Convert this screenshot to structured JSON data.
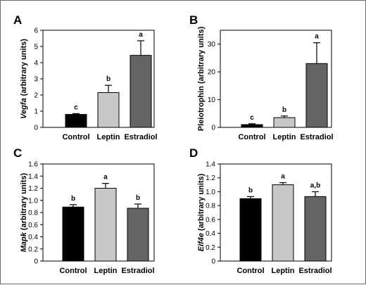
{
  "chart_data": [
    {
      "type": "bar",
      "panel": "A",
      "ylabel_italic": "Vegfa",
      "ylabel_rest": " (arbitrary units)",
      "categories": [
        "Control",
        "Leptin",
        "Estradiol"
      ],
      "values": [
        0.8,
        2.15,
        4.45
      ],
      "errors": [
        0.05,
        0.45,
        0.9
      ],
      "significance": [
        "c",
        "b",
        "a"
      ],
      "colors": [
        "#000000",
        "#c8c8c8",
        "#646464"
      ],
      "ylim": [
        0,
        6
      ],
      "yticks": [
        0,
        1,
        2,
        3,
        4,
        5,
        6
      ]
    },
    {
      "type": "bar",
      "panel": "B",
      "ylabel_italic": "",
      "ylabel_rest": "Pleiotrophin (arbitrary units)",
      "categories": [
        "Control",
        "Leptin",
        "Estradiol"
      ],
      "values": [
        1.0,
        3.5,
        23.0
      ],
      "errors": [
        0.3,
        0.6,
        7.5
      ],
      "significance": [
        "c",
        "b",
        "a"
      ],
      "colors": [
        "#000000",
        "#c8c8c8",
        "#646464"
      ],
      "ylim": [
        0,
        35
      ],
      "yticks": [
        0,
        10,
        20,
        30
      ]
    },
    {
      "type": "bar",
      "panel": "C",
      "ylabel_italic": "Mapk",
      "ylabel_rest": " (arbitrary units)",
      "categories": [
        "Control",
        "Leptin",
        "Estradiol"
      ],
      "values": [
        0.89,
        1.2,
        0.87
      ],
      "errors": [
        0.04,
        0.08,
        0.07
      ],
      "significance": [
        "b",
        "a",
        "b"
      ],
      "colors": [
        "#000000",
        "#c8c8c8",
        "#646464"
      ],
      "ylim": [
        0,
        1.6
      ],
      "yticks": [
        0,
        0.2,
        0.4,
        0.6,
        0.8,
        1.0,
        1.2,
        1.4,
        1.6
      ],
      "ytick_labels": [
        "0",
        "0.2",
        "0.4",
        "0.6",
        "0.8",
        "1.0",
        "1.2",
        "1.4",
        "1.6"
      ]
    },
    {
      "type": "bar",
      "panel": "D",
      "ylabel_italic": "Eif4e",
      "ylabel_rest": " (arbitrary units)",
      "categories": [
        "Control",
        "Leptin",
        "Estradiol"
      ],
      "values": [
        0.9,
        1.1,
        0.93
      ],
      "errors": [
        0.03,
        0.03,
        0.07
      ],
      "significance": [
        "b",
        "a",
        "a,b"
      ],
      "colors": [
        "#000000",
        "#c8c8c8",
        "#646464"
      ],
      "ylim": [
        0,
        1.4
      ],
      "yticks": [
        0,
        0.2,
        0.4,
        0.6,
        0.8,
        1.0,
        1.2,
        1.4
      ],
      "ytick_labels": [
        "0",
        "0.2",
        "0.4",
        "0.6",
        "0.8",
        "1.0",
        "1.2",
        "1.4"
      ]
    }
  ]
}
